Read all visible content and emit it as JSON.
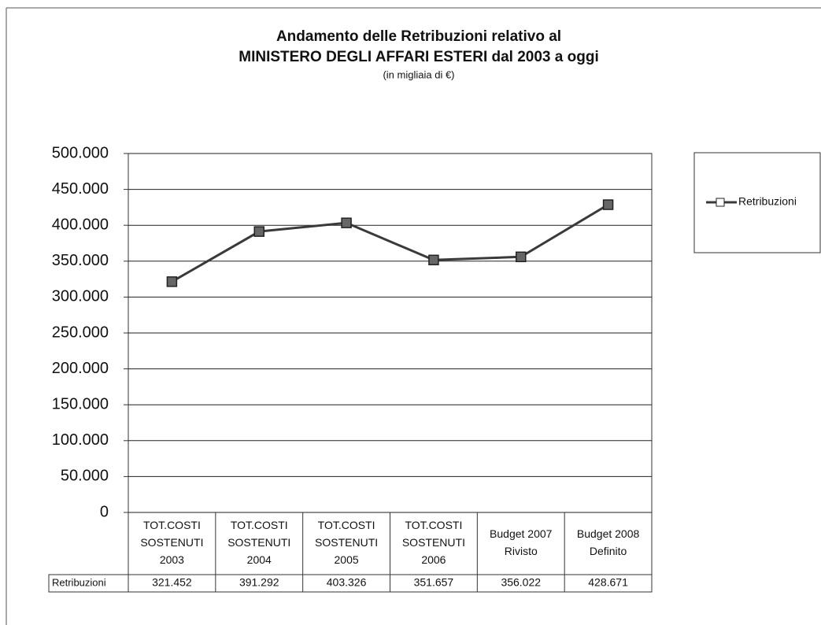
{
  "chart_data": {
    "type": "line",
    "title": "Andamento delle Retribuzioni relativo al",
    "title_line2": "MINISTERO DEGLI AFFARI ESTERI dal 2003 a oggi",
    "subtitle": "(in migliaia di €)",
    "categories": [
      [
        "TOT.COSTI",
        "SOSTENUTI",
        "2003"
      ],
      [
        "TOT.COSTI",
        "SOSTENUTI",
        "2004"
      ],
      [
        "TOT.COSTI",
        "SOSTENUTI",
        "2005"
      ],
      [
        "TOT.COSTI",
        "SOSTENUTI",
        "2006"
      ],
      [
        "Budget 2007",
        "Rivisto"
      ],
      [
        "Budget 2008",
        "Definito"
      ]
    ],
    "series": [
      {
        "name": "Retribuzioni",
        "color": "#3a3a3a",
        "values": [
          321452,
          391292,
          403326,
          351657,
          356022,
          428671
        ],
        "value_labels": [
          "321.452",
          "391.292",
          "403.326",
          "351.657",
          "356.022",
          "428.671"
        ]
      }
    ],
    "ylim": [
      0,
      500000
    ],
    "yticks": [
      0,
      {
        "value": 50000,
        "label": "50.000"
      },
      {
        "value": 100000,
        "label": "100.000"
      },
      {
        "value": 150000,
        "label": "150.000"
      },
      {
        "value": 200000,
        "label": "200.000"
      },
      {
        "value": 250000,
        "label": "250.000"
      },
      {
        "value": 300000,
        "label": "300.000"
      },
      {
        "value": 350000,
        "label": "350.000"
      },
      {
        "value": 400000,
        "label": "400.000"
      },
      {
        "value": 450000,
        "label": "450.000"
      },
      {
        "value": 500000,
        "label": "500.000"
      }
    ],
    "grid": true,
    "legend": "right"
  }
}
